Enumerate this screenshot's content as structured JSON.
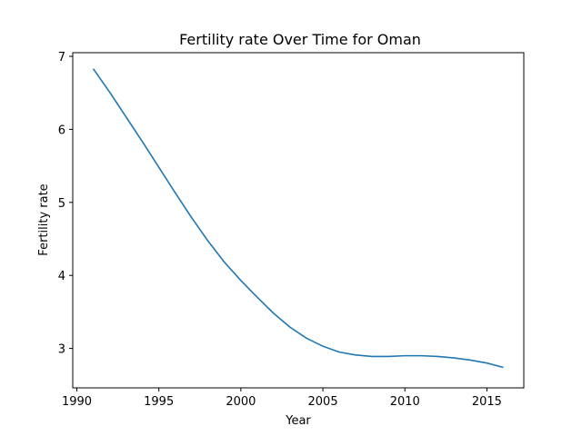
{
  "chart_data": {
    "type": "line",
    "title": "Fertility rate Over Time for Oman",
    "xlabel": "Year",
    "ylabel": "Fertility rate",
    "xlim": [
      1989.75,
      2017.25
    ],
    "ylim": [
      2.46,
      7.05
    ],
    "xticks": [
      1990,
      1995,
      2000,
      2005,
      2010,
      2015
    ],
    "yticks": [
      3,
      4,
      5,
      6,
      7
    ],
    "grid": false,
    "series": [
      {
        "color": "#1f77b4",
        "x": [
          1991,
          1992,
          1993,
          1994,
          1995,
          1996,
          1997,
          1998,
          1999,
          2000,
          2001,
          2002,
          2003,
          2004,
          2005,
          2006,
          2007,
          2008,
          2009,
          2010,
          2011,
          2012,
          2013,
          2014,
          2015,
          2016
        ],
        "y": [
          6.83,
          6.51,
          6.17,
          5.83,
          5.48,
          5.13,
          4.79,
          4.47,
          4.18,
          3.93,
          3.7,
          3.48,
          3.29,
          3.14,
          3.03,
          2.95,
          2.91,
          2.89,
          2.89,
          2.9,
          2.9,
          2.89,
          2.87,
          2.84,
          2.8,
          2.74
        ]
      }
    ]
  }
}
